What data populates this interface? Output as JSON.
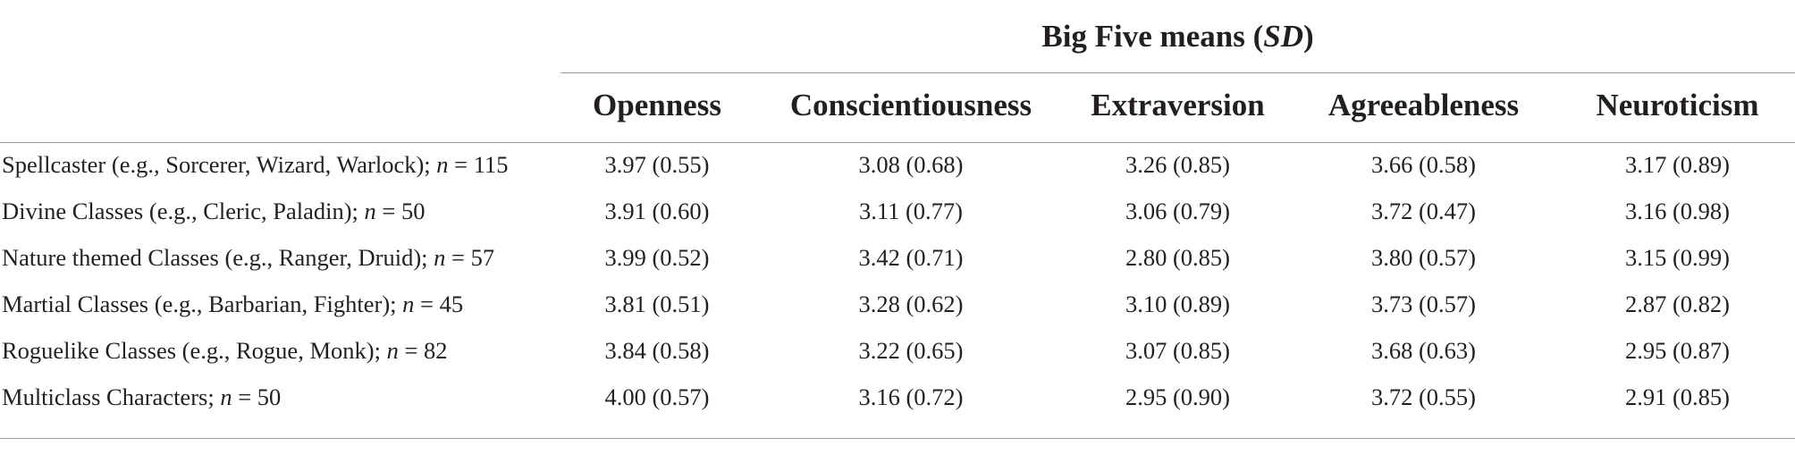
{
  "table": {
    "group_header": {
      "prefix": "Big Five means (",
      "italic": "SD",
      "suffix": ")"
    },
    "columns": [
      "Openness",
      "Conscientiousness",
      "Extraversion",
      "Agreeableness",
      "Neuroticism"
    ],
    "rows": [
      {
        "label_prefix": "Spellcaster (e.g., Sorcerer, Wizard, Warlock); ",
        "n_symbol": "n",
        "n_value": " = 115",
        "values": [
          "3.97 (0.55)",
          "3.08 (0.68)",
          "3.26 (0.85)",
          "3.66 (0.58)",
          "3.17 (0.89)"
        ]
      },
      {
        "label_prefix": "Divine Classes (e.g., Cleric, Paladin); ",
        "n_symbol": "n",
        "n_value": " = 50",
        "values": [
          "3.91 (0.60)",
          "3.11 (0.77)",
          "3.06 (0.79)",
          "3.72 (0.47)",
          "3.16 (0.98)"
        ]
      },
      {
        "label_prefix": "Nature themed Classes (e.g., Ranger, Druid); ",
        "n_symbol": "n",
        "n_value": " = 57",
        "values": [
          "3.99 (0.52)",
          "3.42 (0.71)",
          "2.80 (0.85)",
          "3.80 (0.57)",
          "3.15 (0.99)"
        ]
      },
      {
        "label_prefix": "Martial Classes (e.g., Barbarian, Fighter); ",
        "n_symbol": "n",
        "n_value": " = 45",
        "values": [
          "3.81 (0.51)",
          "3.28 (0.62)",
          "3.10 (0.89)",
          "3.73 (0.57)",
          "2.87 (0.82)"
        ]
      },
      {
        "label_prefix": "Roguelike Classes (e.g., Rogue, Monk); ",
        "n_symbol": "n",
        "n_value": " = 82",
        "values": [
          "3.84 (0.58)",
          "3.22 (0.65)",
          "3.07 (0.85)",
          "3.68 (0.63)",
          "2.95 (0.87)"
        ]
      },
      {
        "label_prefix": "Multiclass Characters; ",
        "n_symbol": "n",
        "n_value": " = 50",
        "values": [
          "4.00 (0.57)",
          "3.16 (0.72)",
          "2.95 (0.90)",
          "3.72 (0.55)",
          "2.91 (0.85)"
        ]
      }
    ]
  }
}
